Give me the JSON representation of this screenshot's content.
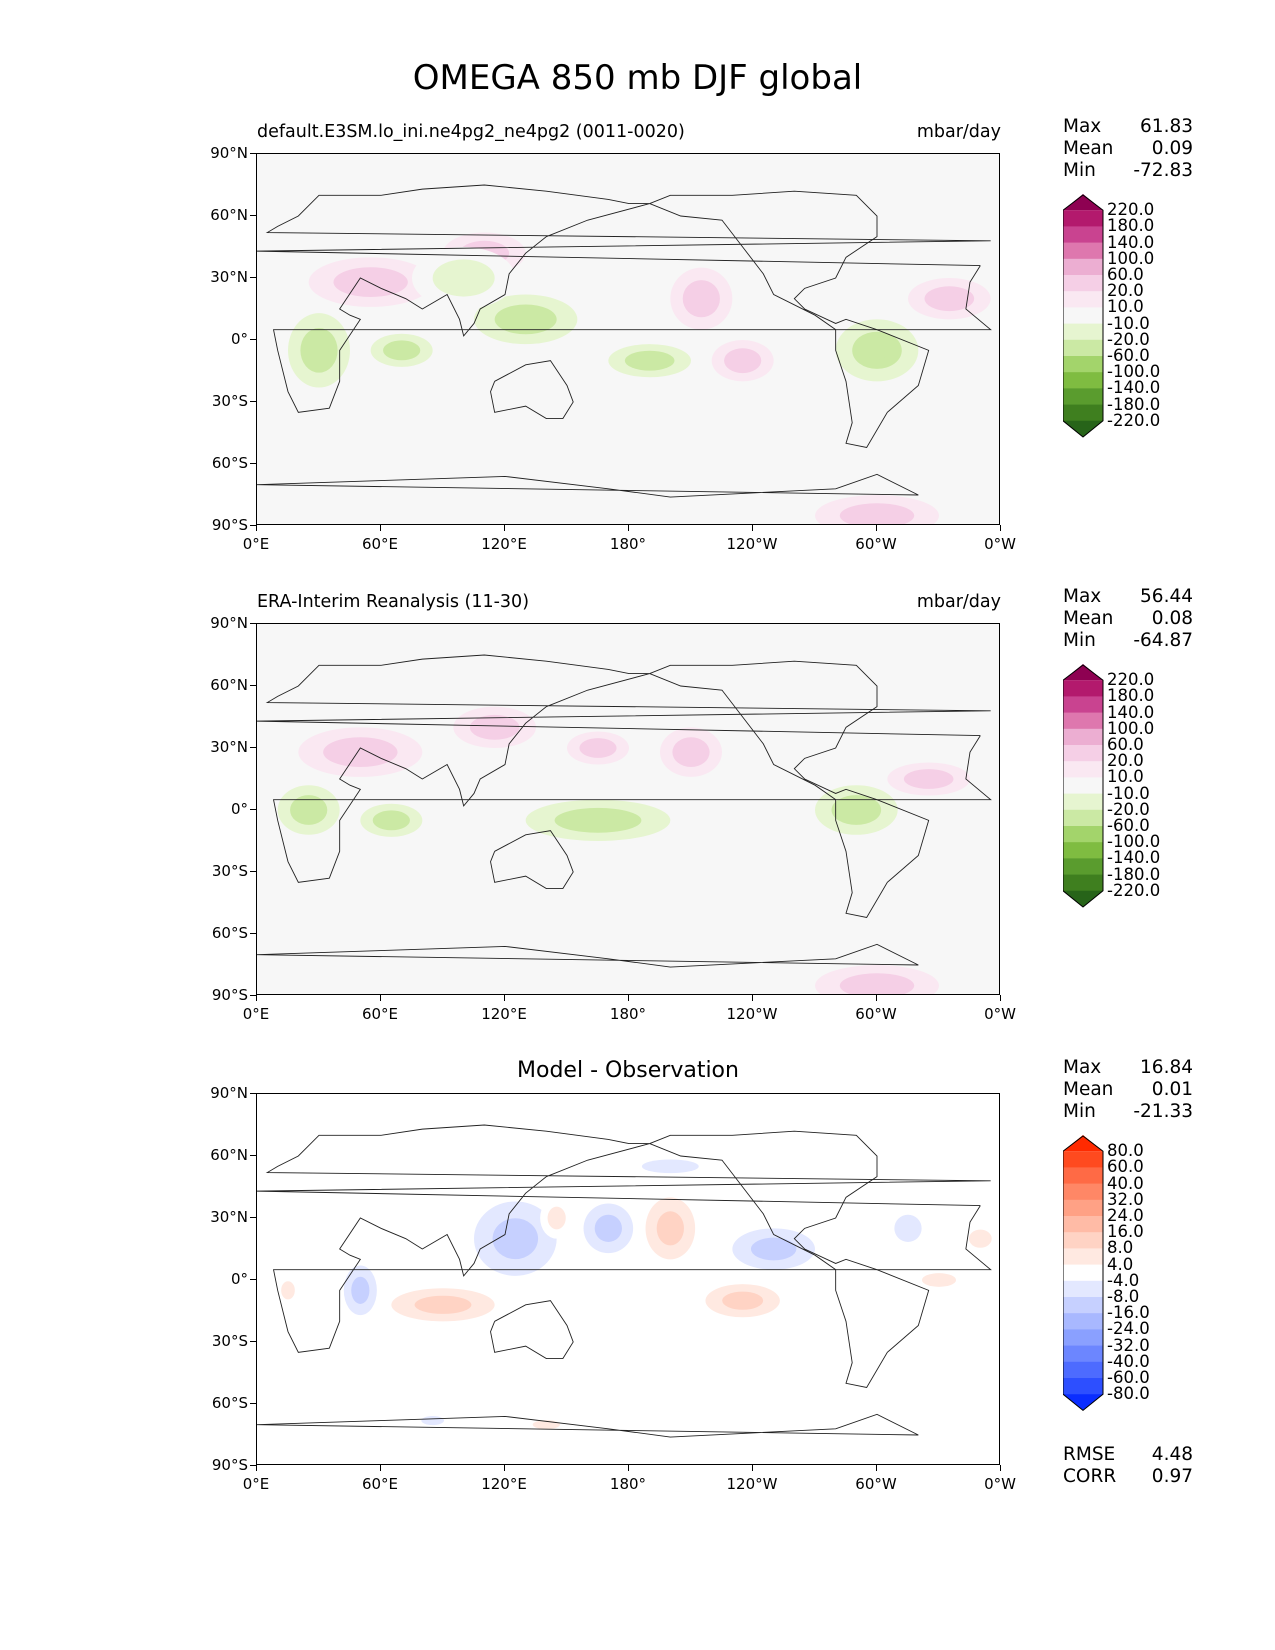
{
  "title": "OMEGA 850 mb DJF global",
  "panels": [
    {
      "title": "default.E3SM.lo_ini.ne4pg2_ne4pg2 (0011-0020)",
      "units": "mbar/day",
      "stats": {
        "max_label": "Max",
        "max": "61.83",
        "mean_label": "Mean",
        "mean": "0.09",
        "min_label": "Min",
        "min": "-72.83"
      }
    },
    {
      "title": "ERA-Interim Reanalysis (11-30)",
      "units": "mbar/day",
      "stats": {
        "max_label": "Max",
        "max": "56.44",
        "mean_label": "Mean",
        "mean": "0.08",
        "min_label": "Min",
        "min": "-64.87"
      }
    },
    {
      "title": "Model - Observation",
      "units": "",
      "stats": {
        "max_label": "Max",
        "max": "16.84",
        "mean_label": "Mean",
        "mean": "0.01",
        "min_label": "Min",
        "min": "-21.33"
      },
      "metrics": {
        "rmse_label": "RMSE",
        "rmse": "4.48",
        "corr_label": "CORR",
        "corr": "0.97"
      }
    }
  ],
  "axes": {
    "yticks": [
      "90°N",
      "60°N",
      "30°N",
      "0°",
      "30°S",
      "60°S",
      "90°S"
    ],
    "xticks": [
      "0°E",
      "60°E",
      "120°E",
      "180°",
      "120°W",
      "60°W",
      "0°W"
    ]
  },
  "colorbars": {
    "field": {
      "labels": [
        "220.0",
        "180.0",
        "140.0",
        "100.0",
        "60.0",
        "20.0",
        "10.0",
        "-10.0",
        "-20.0",
        "-60.0",
        "-100.0",
        "-140.0",
        "-180.0",
        "-220.0"
      ],
      "colors": [
        "#8e0152",
        "#b3196d",
        "#c94390",
        "#de77ae",
        "#ecaed2",
        "#f5cfe6",
        "#fae8f2",
        "#f7f7f7",
        "#e6f5d0",
        "#cbe9a4",
        "#a3d46b",
        "#7fbc41",
        "#5a9c2e",
        "#3f7f1f",
        "#276419"
      ]
    },
    "diff": {
      "labels": [
        "80.0",
        "60.0",
        "40.0",
        "32.0",
        "24.0",
        "16.0",
        "8.0",
        "4.0",
        "-4.0",
        "-8.0",
        "-16.0",
        "-24.0",
        "-32.0",
        "-40.0",
        "-60.0",
        "-80.0"
      ],
      "colors": [
        "#ff2a00",
        "#ff4a1f",
        "#ff6a45",
        "#ff8766",
        "#ffa185",
        "#ffbba6",
        "#ffd3c4",
        "#ffe9e1",
        "#ffffff",
        "#e3e8ff",
        "#c6d0ff",
        "#a8b8ff",
        "#8aa0ff",
        "#6c86ff",
        "#4d6bff",
        "#2d4fff",
        "#0a2dff"
      ]
    }
  },
  "chart_data": [
    {
      "type": "heatmap",
      "title": "default.E3SM.lo_ini.ne4pg2_ne4pg2 (0011-0020)",
      "units": "mbar/day",
      "xlim": [
        0,
        360
      ],
      "ylim": [
        -90,
        90
      ],
      "features": [
        {
          "lon": 55,
          "lat": 28,
          "v": 40,
          "rx": 30,
          "ry": 12
        },
        {
          "lon": 30,
          "lat": -5,
          "v": -40,
          "rx": 15,
          "ry": 18
        },
        {
          "lon": 70,
          "lat": -5,
          "v": -35,
          "rx": 15,
          "ry": 8
        },
        {
          "lon": 110,
          "lat": 42,
          "v": 35,
          "rx": 20,
          "ry": 10
        },
        {
          "lon": 130,
          "lat": 10,
          "v": -45,
          "rx": 25,
          "ry": 12
        },
        {
          "lon": 190,
          "lat": -10,
          "v": -40,
          "rx": 20,
          "ry": 8
        },
        {
          "lon": 215,
          "lat": 20,
          "v": 40,
          "rx": 15,
          "ry": 15
        },
        {
          "lon": 235,
          "lat": -10,
          "v": 35,
          "rx": 15,
          "ry": 10
        },
        {
          "lon": 300,
          "lat": -5,
          "v": -40,
          "rx": 20,
          "ry": 15
        },
        {
          "lon": 335,
          "lat": 20,
          "v": 35,
          "rx": 20,
          "ry": 10
        },
        {
          "lon": 300,
          "lat": -85,
          "v": 45,
          "rx": 30,
          "ry": 10
        },
        {
          "lon": 100,
          "lat": 30,
          "v": -15,
          "rx": 25,
          "ry": 15
        }
      ]
    },
    {
      "type": "heatmap",
      "title": "ERA-Interim Reanalysis (11-30)",
      "units": "mbar/day",
      "xlim": [
        0,
        360
      ],
      "ylim": [
        -90,
        90
      ],
      "features": [
        {
          "lon": 50,
          "lat": 28,
          "v": 40,
          "rx": 30,
          "ry": 12
        },
        {
          "lon": 25,
          "lat": 0,
          "v": -40,
          "rx": 15,
          "ry": 12
        },
        {
          "lon": 65,
          "lat": -5,
          "v": -35,
          "rx": 15,
          "ry": 8
        },
        {
          "lon": 115,
          "lat": 40,
          "v": 35,
          "rx": 20,
          "ry": 10
        },
        {
          "lon": 165,
          "lat": -5,
          "v": -45,
          "rx": 35,
          "ry": 10
        },
        {
          "lon": 165,
          "lat": 30,
          "v": 35,
          "rx": 15,
          "ry": 8
        },
        {
          "lon": 210,
          "lat": 28,
          "v": 35,
          "rx": 15,
          "ry": 12
        },
        {
          "lon": 290,
          "lat": 0,
          "v": -40,
          "rx": 20,
          "ry": 12
        },
        {
          "lon": 325,
          "lat": 15,
          "v": 30,
          "rx": 20,
          "ry": 8
        },
        {
          "lon": 300,
          "lat": -85,
          "v": 45,
          "rx": 30,
          "ry": 10
        }
      ]
    },
    {
      "type": "heatmap",
      "title": "Model - Observation",
      "xlim": [
        0,
        360
      ],
      "ylim": [
        -90,
        90
      ],
      "features": [
        {
          "lon": 125,
          "lat": 20,
          "v": -16,
          "rx": 20,
          "ry": 18
        },
        {
          "lon": 200,
          "lat": 25,
          "v": 16,
          "rx": 12,
          "ry": 15
        },
        {
          "lon": 250,
          "lat": 15,
          "v": -16,
          "rx": 20,
          "ry": 10
        },
        {
          "lon": 170,
          "lat": 25,
          "v": -12,
          "rx": 12,
          "ry": 12
        },
        {
          "lon": 235,
          "lat": -10,
          "v": 14,
          "rx": 18,
          "ry": 8
        },
        {
          "lon": 90,
          "lat": -12,
          "v": 14,
          "rx": 25,
          "ry": 8
        },
        {
          "lon": 50,
          "lat": -5,
          "v": -12,
          "rx": 8,
          "ry": 12
        },
        {
          "lon": 15,
          "lat": -5,
          "v": 10,
          "rx": 6,
          "ry": 8
        },
        {
          "lon": 315,
          "lat": 25,
          "v": -10,
          "rx": 12,
          "ry": 12
        },
        {
          "lon": 350,
          "lat": 20,
          "v": 10,
          "rx": 10,
          "ry": 8
        },
        {
          "lon": 330,
          "lat": 0,
          "v": 8,
          "rx": 15,
          "ry": 6
        },
        {
          "lon": 140,
          "lat": -70,
          "v": 8,
          "rx": 12,
          "ry": 4
        },
        {
          "lon": 85,
          "lat": -68,
          "v": -8,
          "rx": 10,
          "ry": 4
        },
        {
          "lon": 200,
          "lat": 55,
          "v": -8,
          "rx": 25,
          "ry": 6
        },
        {
          "lon": 145,
          "lat": 30,
          "v": 8,
          "rx": 8,
          "ry": 10
        }
      ]
    }
  ]
}
